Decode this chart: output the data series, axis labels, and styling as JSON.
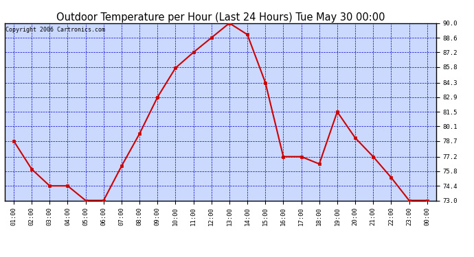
{
  "title": "Outdoor Temperature per Hour (Last 24 Hours) Tue May 30 00:00",
  "copyright": "Copyright 2006 Cartronics.com",
  "x_labels": [
    "01:00",
    "02:00",
    "03:00",
    "04:00",
    "05:00",
    "06:00",
    "07:00",
    "08:00",
    "09:00",
    "10:00",
    "11:00",
    "12:00",
    "13:00",
    "14:00",
    "15:00",
    "16:00",
    "17:00",
    "18:00",
    "19:00",
    "20:00",
    "21:00",
    "22:00",
    "23:00",
    "00:00"
  ],
  "y_values": [
    78.7,
    76.0,
    74.4,
    74.4,
    73.0,
    73.0,
    76.3,
    79.4,
    82.9,
    85.7,
    87.2,
    88.6,
    90.0,
    88.9,
    84.3,
    77.2,
    77.2,
    76.5,
    81.5,
    79.0,
    77.2,
    75.2,
    73.0,
    73.0
  ],
  "line_color": "#cc0000",
  "marker_color": "#cc0000",
  "plot_bg_color": "#ccd9ff",
  "outer_bg_color": "#ffffff",
  "grid_color": "#0000cc",
  "title_color": "#000000",
  "copyright_color": "#000000",
  "ylim": [
    73.0,
    90.0
  ],
  "yticks": [
    73.0,
    74.4,
    75.8,
    77.2,
    78.7,
    80.1,
    81.5,
    82.9,
    84.3,
    85.8,
    87.2,
    88.6,
    90.0
  ],
  "title_fontsize": 10.5,
  "copyright_fontsize": 6,
  "tick_fontsize": 6.5,
  "line_width": 1.5,
  "marker_size": 3
}
